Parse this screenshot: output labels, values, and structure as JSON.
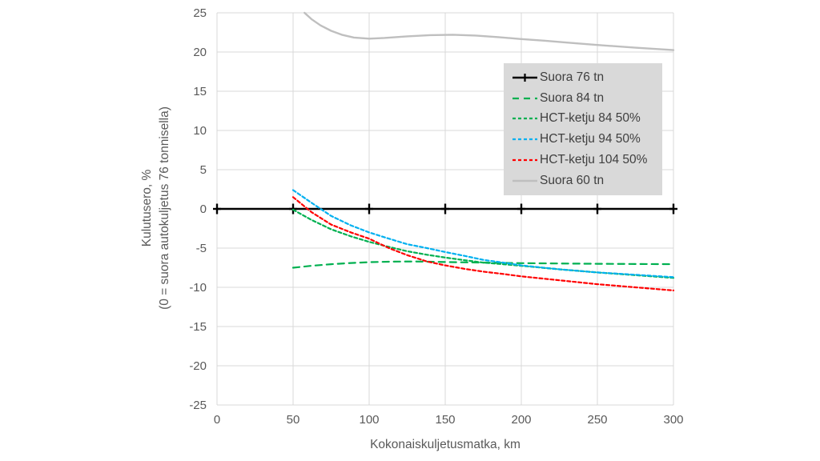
{
  "chart_data": {
    "type": "line",
    "title": "",
    "xlabel": "Kokonaiskuljetusmatka, km",
    "ylabel_line1": "Kulutusero, %",
    "ylabel_line2": "(0 = suora autokuljetus 76 tonnisella)",
    "xlim": [
      0,
      300
    ],
    "ylim": [
      -25,
      25
    ],
    "xticks": [
      0,
      50,
      100,
      150,
      200,
      250,
      300
    ],
    "yticks": [
      25,
      20,
      15,
      10,
      5,
      0,
      -5,
      -10,
      -15,
      -20,
      -25
    ],
    "grid": true,
    "legend_position": "inside-upper-right",
    "series": [
      {
        "name": "Suora 76 tn",
        "color": "#000000",
        "line_style": "solid",
        "marker": "plus",
        "points": [
          [
            0,
            0
          ],
          [
            50,
            0
          ],
          [
            100,
            0
          ],
          [
            150,
            0
          ],
          [
            200,
            0
          ],
          [
            250,
            0
          ],
          [
            300,
            0
          ]
        ]
      },
      {
        "name": "Suora 84 tn",
        "color": "#00B050",
        "line_style": "long-dash",
        "marker": "none",
        "points": [
          [
            50,
            -7.5
          ],
          [
            62,
            -7.25
          ],
          [
            75,
            -7.05
          ],
          [
            88,
            -6.9
          ],
          [
            100,
            -6.8
          ],
          [
            115,
            -6.72
          ],
          [
            130,
            -6.7
          ],
          [
            150,
            -6.78
          ],
          [
            175,
            -6.85
          ],
          [
            200,
            -6.92
          ],
          [
            250,
            -7.0
          ],
          [
            300,
            -7.05
          ]
        ]
      },
      {
        "name": "HCT-ketju 84 50%",
        "color": "#00B050",
        "line_style": "short-dash",
        "marker": "none",
        "points": [
          [
            50,
            -0.1
          ],
          [
            62,
            -1.4
          ],
          [
            75,
            -2.6
          ],
          [
            88,
            -3.5
          ],
          [
            100,
            -4.2
          ],
          [
            113,
            -4.85
          ],
          [
            125,
            -5.4
          ],
          [
            138,
            -5.85
          ],
          [
            150,
            -6.2
          ],
          [
            163,
            -6.55
          ],
          [
            175,
            -6.85
          ],
          [
            188,
            -7.05
          ],
          [
            200,
            -7.25
          ],
          [
            225,
            -7.7
          ],
          [
            250,
            -8.1
          ],
          [
            275,
            -8.45
          ],
          [
            300,
            -8.8
          ]
        ]
      },
      {
        "name": "HCT-ketju 94 50%",
        "color": "#00B0F0",
        "line_style": "short-dash",
        "marker": "none",
        "points": [
          [
            50,
            2.4
          ],
          [
            62,
            0.8
          ],
          [
            75,
            -0.9
          ],
          [
            88,
            -2.1
          ],
          [
            100,
            -3.0
          ],
          [
            113,
            -3.8
          ],
          [
            125,
            -4.5
          ],
          [
            138,
            -5.0
          ],
          [
            150,
            -5.5
          ],
          [
            163,
            -6.0
          ],
          [
            175,
            -6.5
          ],
          [
            188,
            -6.85
          ],
          [
            200,
            -7.2
          ],
          [
            225,
            -7.7
          ],
          [
            250,
            -8.1
          ],
          [
            275,
            -8.4
          ],
          [
            300,
            -8.7
          ]
        ]
      },
      {
        "name": "HCT-ketju 104 50%",
        "color": "#FF0000",
        "line_style": "short-dash",
        "marker": "none",
        "points": [
          [
            50,
            1.5
          ],
          [
            62,
            -0.4
          ],
          [
            75,
            -2.0
          ],
          [
            88,
            -3.0
          ],
          [
            100,
            -3.8
          ],
          [
            113,
            -5.0
          ],
          [
            125,
            -5.9
          ],
          [
            138,
            -6.7
          ],
          [
            150,
            -7.2
          ],
          [
            163,
            -7.65
          ],
          [
            175,
            -8.0
          ],
          [
            188,
            -8.3
          ],
          [
            200,
            -8.6
          ],
          [
            225,
            -9.1
          ],
          [
            250,
            -9.6
          ],
          [
            275,
            -10.0
          ],
          [
            300,
            -10.4
          ]
        ]
      },
      {
        "name": "Suora 60 tn",
        "color": "#BFBFBF",
        "line_style": "solid",
        "marker": "none",
        "points": [
          [
            57.5,
            25
          ],
          [
            62,
            24.2
          ],
          [
            68,
            23.4
          ],
          [
            75,
            22.7
          ],
          [
            82,
            22.2
          ],
          [
            90,
            21.85
          ],
          [
            100,
            21.7
          ],
          [
            110,
            21.8
          ],
          [
            125,
            22.0
          ],
          [
            140,
            22.15
          ],
          [
            155,
            22.2
          ],
          [
            170,
            22.1
          ],
          [
            185,
            21.9
          ],
          [
            200,
            21.65
          ],
          [
            215,
            21.45
          ],
          [
            230,
            21.2
          ],
          [
            250,
            20.9
          ],
          [
            275,
            20.55
          ],
          [
            300,
            20.25
          ]
        ]
      }
    ]
  },
  "colors": {
    "grid": "#d9d9d9",
    "axis_text": "#595959",
    "legend_background": "#d9d9d9",
    "legend_text": "#3f3f3f",
    "background": "#ffffff"
  }
}
